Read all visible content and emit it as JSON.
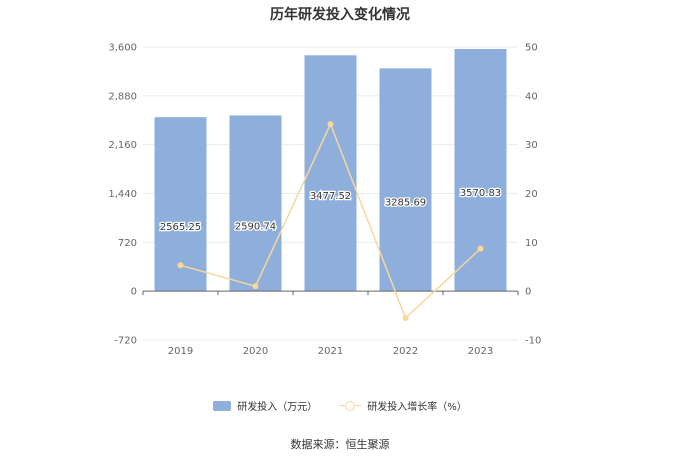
{
  "chart_data": {
    "type": "bar",
    "title": "历年研发投入变化情况",
    "categories": [
      "2019",
      "2020",
      "2021",
      "2022",
      "2023"
    ],
    "series": [
      {
        "name": "研发投入（万元）",
        "type": "bar",
        "axis": "left",
        "values": [
          2565.25,
          2590.74,
          3477.52,
          3285.69,
          3570.83
        ],
        "labels": [
          "2565.25",
          "2590.74",
          "3477.52",
          "3285.69",
          "3570.83"
        ],
        "color": "#8eaedb"
      },
      {
        "name": "研发投入增长率（%）",
        "type": "line",
        "axis": "right",
        "values": [
          5.3,
          1.0,
          34.2,
          -5.5,
          8.7
        ],
        "color": "#f8d79a"
      }
    ],
    "y_left": {
      "ylim": [
        -720,
        3600
      ],
      "ticks": [
        "-720",
        "0",
        "720",
        "1,440",
        "2,160",
        "2,880",
        "3,600"
      ]
    },
    "y_right": {
      "ylim": [
        -10,
        50
      ],
      "ticks": [
        "-10",
        "0",
        "10",
        "20",
        "30",
        "40",
        "50"
      ]
    },
    "grid": true,
    "legend": "bottom-center",
    "source": "数据来源：恒生聚源"
  }
}
